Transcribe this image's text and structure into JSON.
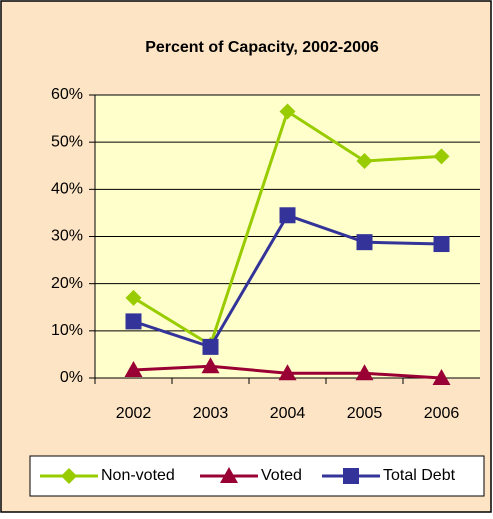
{
  "chart_data": {
    "type": "line",
    "title": "Percent of Capacity, 2002-2006",
    "categories": [
      "2002",
      "2003",
      "2004",
      "2005",
      "2006"
    ],
    "series": [
      {
        "name": "Non-voted",
        "color": "#99cc00",
        "marker": "diamond",
        "values": [
          17,
          7,
          56.5,
          46,
          47
        ]
      },
      {
        "name": "Voted",
        "color": "#990033",
        "marker": "triangle",
        "values": [
          1.7,
          2.5,
          1,
          1,
          0
        ]
      },
      {
        "name": "Total Debt",
        "color": "#333399",
        "marker": "square",
        "values": [
          12,
          6.6,
          34.5,
          28.8,
          28.4
        ]
      }
    ],
    "ylim": [
      0,
      60
    ],
    "yticks": [
      {
        "value": 0,
        "label": "0%"
      },
      {
        "value": 10,
        "label": "10%"
      },
      {
        "value": 20,
        "label": "20%"
      },
      {
        "value": 30,
        "label": "30%"
      },
      {
        "value": 40,
        "label": "40%"
      },
      {
        "value": 50,
        "label": "50%"
      },
      {
        "value": 60,
        "label": "60%"
      }
    ],
    "grid": true,
    "legend": "bottom"
  }
}
